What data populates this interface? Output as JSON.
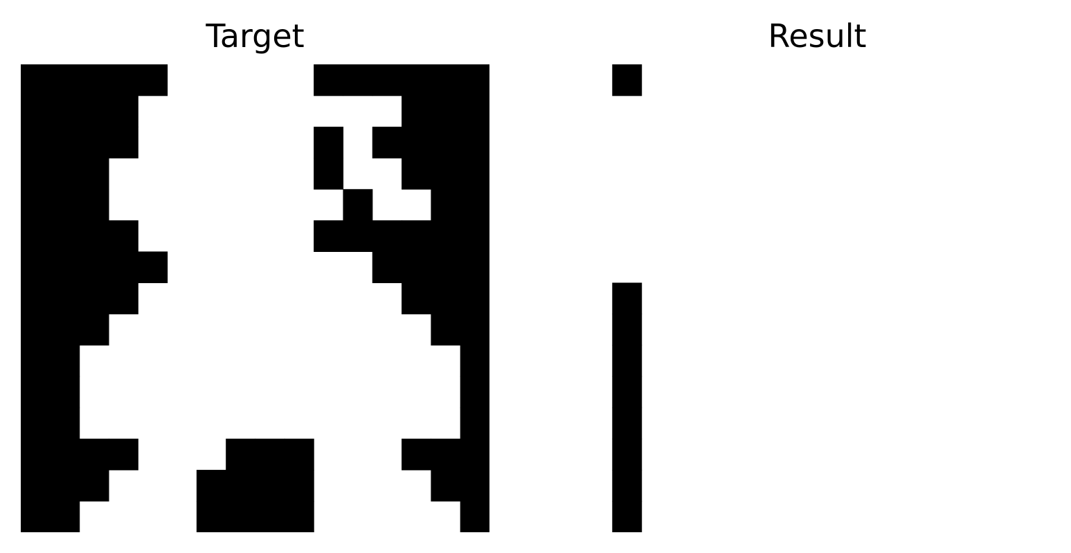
{
  "panels": {
    "target": {
      "title": "Target",
      "rows": [
        "1111100000111111",
        "1111000000000111",
        "1111000000101111",
        "1110000000100111",
        "1110000000010011",
        "1111000000111111",
        "1111100000001111",
        "1111000000000111",
        "1110000000000011",
        "1100000000000001",
        "1100000000000001",
        "1100000000000001",
        "1111000111000111",
        "1110001111000011",
        "1100001111000001"
      ]
    },
    "result": {
      "title": "Result",
      "rows": [
        "0100000000000000",
        "0000000000000000",
        "0000000000000000",
        "0000000000000000",
        "0000000000000000",
        "0000000000000000",
        "0000000000000000",
        "0100000000000000",
        "0100000000000000",
        "0100000000000000",
        "0100000000000000",
        "0100000000000000",
        "0100000000000000",
        "0100000000000000",
        "0100000000000000"
      ]
    }
  },
  "colors": {
    "on": "#000000",
    "off": "#ffffff"
  }
}
